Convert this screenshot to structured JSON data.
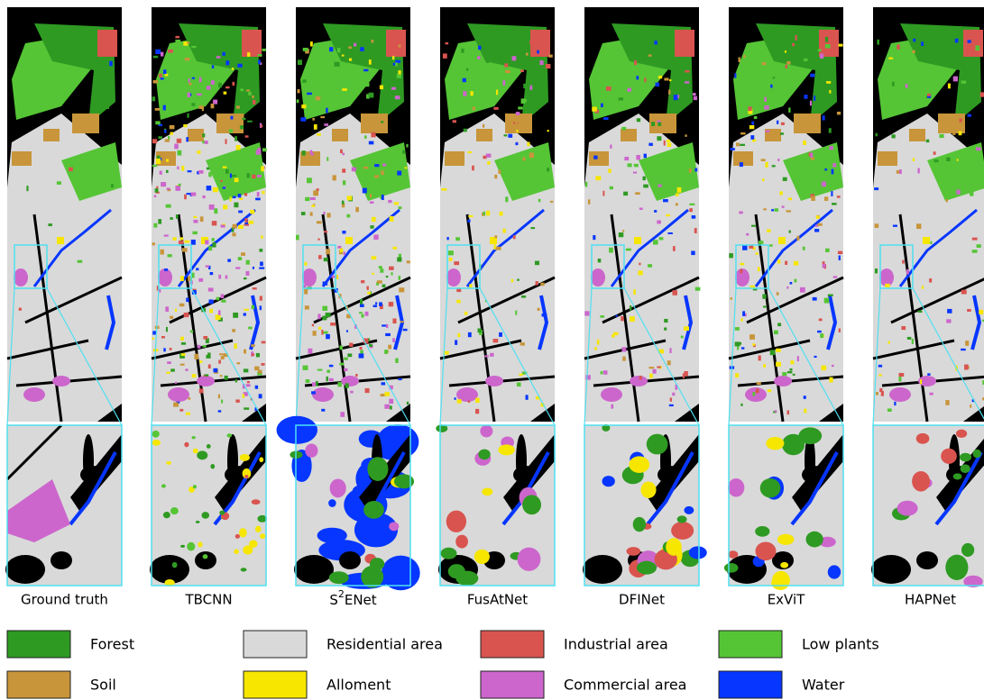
{
  "captions": [
    "Ground truth",
    "TBCNN",
    {
      "text": "S",
      "superscript": "2",
      "suffix": "ENet"
    },
    "FusAtNet",
    "DFINet",
    "ExViT",
    "HAPNet"
  ],
  "legend": [
    {
      "label": "Forest",
      "color": "#2e9a22"
    },
    {
      "label": "Residential area",
      "color": "#d9d9d9"
    },
    {
      "label": "Industrial area",
      "color": "#d9544f"
    },
    {
      "label": "Low plants",
      "color": "#55c535"
    },
    {
      "label": "Soil",
      "color": "#c8953a"
    },
    {
      "label": "Alloment",
      "color": "#f6e600"
    },
    {
      "label": "Commercial area",
      "color": "#cc66cc"
    },
    {
      "label": "Water",
      "color": "#0636ff"
    }
  ]
}
